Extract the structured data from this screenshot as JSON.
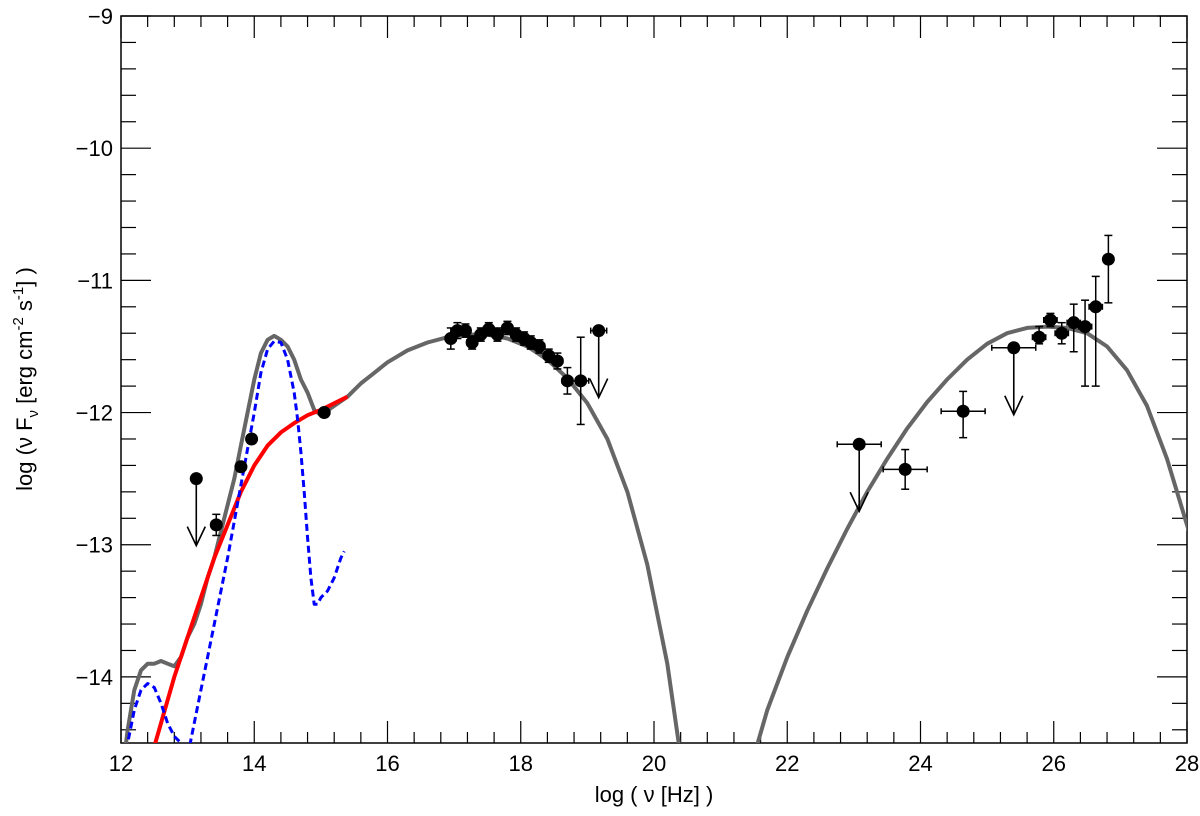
{
  "chart_data": {
    "type": "scatter",
    "title": "",
    "xlabel": "log ( ν [Hz] )",
    "ylabel": "log (ν F",
    "ylabel_sub": "ν",
    "ylabel_rest": " [erg cm",
    "ylabel_exp1": "-2",
    "ylabel_mid": " s",
    "ylabel_exp2": "-1",
    "ylabel_end": "] )",
    "xlim": [
      12,
      28
    ],
    "ylim": [
      -14.5,
      -9
    ],
    "xticks": [
      {
        "value": 12,
        "label": "12"
      },
      {
        "value": 14,
        "label": "14"
      },
      {
        "value": 16,
        "label": "16"
      },
      {
        "value": 18,
        "label": "18"
      },
      {
        "value": 20,
        "label": "20"
      },
      {
        "value": 22,
        "label": "22"
      },
      {
        "value": 24,
        "label": "24"
      },
      {
        "value": 26,
        "label": "26"
      },
      {
        "value": 28,
        "label": "28"
      }
    ],
    "yticks": [
      {
        "value": -14,
        "label": "−14"
      },
      {
        "value": -13,
        "label": "−13"
      },
      {
        "value": -12,
        "label": "−12"
      },
      {
        "value": -11,
        "label": "−11"
      },
      {
        "value": -10,
        "label": "−10"
      },
      {
        "value": -9,
        "label": "−9"
      }
    ],
    "grid": false,
    "colors": {
      "total": "#666666",
      "red": "#ff0000",
      "blue": "#0000ff",
      "points": "#000000"
    },
    "points": [
      {
        "x": 13.43,
        "y": -12.85,
        "yerr": [
          0.08,
          0.08
        ]
      },
      {
        "x": 13.8,
        "y": -12.41,
        "yerr": [
          0.03,
          0.03
        ]
      },
      {
        "x": 13.96,
        "y": -12.2,
        "yerr": [
          0.03,
          0.03
        ]
      },
      {
        "x": 15.05,
        "y": -12.0,
        "yerr": [
          0.03,
          0.03
        ]
      },
      {
        "x": 16.95,
        "y": -11.44,
        "xerr": [
          0.08,
          0.08
        ],
        "yerr": [
          0.08,
          0.08
        ]
      },
      {
        "x": 17.05,
        "y": -11.38,
        "xerr": [
          0.08,
          0.08
        ],
        "yerr": [
          0.06,
          0.06
        ]
      },
      {
        "x": 17.17,
        "y": -11.38,
        "xerr": [
          0.08,
          0.08
        ],
        "yerr": [
          0.05,
          0.05
        ]
      },
      {
        "x": 17.27,
        "y": -11.47,
        "xerr": [
          0.08,
          0.08
        ],
        "yerr": [
          0.05,
          0.05
        ]
      },
      {
        "x": 17.4,
        "y": -11.41,
        "xerr": [
          0.08,
          0.08
        ],
        "yerr": [
          0.05,
          0.05
        ]
      },
      {
        "x": 17.52,
        "y": -11.37,
        "xerr": [
          0.08,
          0.08
        ],
        "yerr": [
          0.05,
          0.05
        ]
      },
      {
        "x": 17.65,
        "y": -11.41,
        "xerr": [
          0.08,
          0.08
        ],
        "yerr": [
          0.05,
          0.05
        ]
      },
      {
        "x": 17.8,
        "y": -11.36,
        "xerr": [
          0.08,
          0.08
        ],
        "yerr": [
          0.05,
          0.05
        ]
      },
      {
        "x": 17.93,
        "y": -11.41,
        "xerr": [
          0.08,
          0.08
        ],
        "yerr": [
          0.05,
          0.05
        ]
      },
      {
        "x": 18.05,
        "y": -11.44,
        "xerr": [
          0.08,
          0.08
        ],
        "yerr": [
          0.05,
          0.05
        ]
      },
      {
        "x": 18.15,
        "y": -11.47,
        "xerr": [
          0.08,
          0.08
        ],
        "yerr": [
          0.05,
          0.05
        ]
      },
      {
        "x": 18.28,
        "y": -11.5,
        "xerr": [
          0.08,
          0.08
        ],
        "yerr": [
          0.05,
          0.05
        ]
      },
      {
        "x": 18.42,
        "y": -11.57,
        "xerr": [
          0.08,
          0.08
        ],
        "yerr": [
          0.05,
          0.05
        ]
      },
      {
        "x": 18.55,
        "y": -11.61,
        "xerr": [
          0.08,
          0.08
        ],
        "yerr": [
          0.06,
          0.06
        ]
      },
      {
        "x": 18.7,
        "y": -11.76,
        "xerr": [
          0.08,
          0.08
        ],
        "yerr": [
          0.1,
          0.1
        ]
      },
      {
        "x": 18.9,
        "y": -11.76,
        "xerr": [
          0.12,
          0.12
        ],
        "yerr": [
          0.33,
          0.33
        ]
      },
      {
        "x": 23.77,
        "y": -12.43,
        "xerr": [
          0.33,
          0.33
        ],
        "yerr": [
          0.15,
          0.15
        ]
      },
      {
        "x": 24.64,
        "y": -11.99,
        "xerr": [
          0.33,
          0.33
        ],
        "yerr": [
          0.2,
          0.15
        ]
      },
      {
        "x": 25.78,
        "y": -11.43,
        "xerr": [
          0.1,
          0.1
        ],
        "yerr": [
          0.05,
          0.08
        ]
      },
      {
        "x": 25.95,
        "y": -11.3,
        "xerr": [
          0.1,
          0.1
        ],
        "yerr": [
          0.05,
          0.05
        ]
      },
      {
        "x": 26.12,
        "y": -11.4,
        "xerr": [
          0.1,
          0.1
        ],
        "yerr": [
          0.08,
          0.08
        ]
      },
      {
        "x": 26.3,
        "y": -11.32,
        "xerr": [
          0.1,
          0.1
        ],
        "yerr": [
          0.22,
          0.14
        ]
      },
      {
        "x": 26.47,
        "y": -11.35,
        "xerr": [
          0.1,
          0.1
        ],
        "yerr": [
          0.45,
          0.2
        ]
      },
      {
        "x": 26.63,
        "y": -11.2,
        "xerr": [
          0.1,
          0.1
        ],
        "yerr": [
          0.6,
          0.23
        ]
      },
      {
        "x": 26.82,
        "y": -10.84,
        "xerr": [
          0.05,
          0.05
        ],
        "yerr": [
          0.33,
          0.18
        ]
      }
    ],
    "upper_limits": [
      {
        "x": 13.13,
        "y": -12.5
      },
      {
        "x": 19.17,
        "y": -11.38,
        "xerr": [
          0.12,
          0.12
        ]
      },
      {
        "x": 23.08,
        "y": -12.24,
        "xerr": [
          0.33,
          0.33
        ]
      },
      {
        "x": 25.4,
        "y": -11.51,
        "xerr": [
          0.33,
          0.33
        ]
      }
    ],
    "series": [
      {
        "color": "#666666",
        "style": "solid",
        "x": [
          12.0,
          12.1,
          12.2,
          12.3,
          12.4,
          12.5,
          12.6,
          12.7,
          12.8,
          12.9,
          13.0,
          13.1,
          13.2,
          13.3,
          13.4,
          13.5,
          13.6,
          13.7,
          13.8,
          13.9,
          14.0,
          14.1,
          14.2,
          14.3,
          14.4,
          14.5,
          14.6,
          14.7,
          14.8,
          14.9,
          15.0,
          15.2,
          15.4,
          15.6,
          15.8,
          16.0,
          16.3,
          16.6,
          16.9,
          17.2,
          17.5,
          17.8,
          18.1,
          18.4,
          18.7,
          19.0,
          19.3,
          19.6,
          19.9,
          20.2,
          20.4
        ],
        "y": [
          -14.8,
          -14.4,
          -14.1,
          -13.95,
          -13.9,
          -13.9,
          -13.88,
          -13.9,
          -13.92,
          -13.85,
          -13.7,
          -13.6,
          -13.45,
          -13.25,
          -13.1,
          -12.9,
          -12.7,
          -12.5,
          -12.25,
          -12.0,
          -11.75,
          -11.55,
          -11.45,
          -11.42,
          -11.45,
          -11.5,
          -11.6,
          -11.75,
          -11.85,
          -11.98,
          -12.02,
          -11.95,
          -11.88,
          -11.78,
          -11.7,
          -11.62,
          -11.53,
          -11.47,
          -11.43,
          -11.41,
          -11.41,
          -11.44,
          -11.5,
          -11.6,
          -11.74,
          -11.93,
          -12.2,
          -12.6,
          -13.15,
          -13.9,
          -14.6
        ]
      },
      {
        "color": "#666666",
        "style": "solid",
        "x": [
          21.5,
          21.7,
          22.0,
          22.3,
          22.6,
          22.9,
          23.2,
          23.5,
          23.8,
          24.1,
          24.4,
          24.7,
          25.0,
          25.3,
          25.6,
          25.9,
          26.2,
          26.5,
          26.8,
          27.1,
          27.4,
          27.7,
          28.0,
          28.05
        ],
        "y": [
          -14.6,
          -14.25,
          -13.85,
          -13.5,
          -13.18,
          -12.88,
          -12.6,
          -12.35,
          -12.12,
          -11.92,
          -11.75,
          -11.6,
          -11.48,
          -11.4,
          -11.36,
          -11.35,
          -11.36,
          -11.4,
          -11.5,
          -11.68,
          -11.95,
          -12.35,
          -12.85,
          -12.93
        ]
      },
      {
        "color": "#ff0000",
        "style": "solid",
        "x": [
          12.4,
          12.6,
          12.8,
          13.0,
          13.2,
          13.4,
          13.6,
          13.8,
          14.0,
          14.2,
          14.4,
          14.6,
          14.8,
          15.0,
          15.2,
          15.4
        ],
        "y": [
          -14.7,
          -14.35,
          -14.0,
          -13.7,
          -13.4,
          -13.1,
          -12.85,
          -12.6,
          -12.4,
          -12.25,
          -12.15,
          -12.08,
          -12.02,
          -11.98,
          -11.93,
          -11.88
        ]
      },
      {
        "color": "#0000ff",
        "style": "dashed",
        "x": [
          12.0,
          12.1,
          12.2,
          12.3,
          12.4,
          12.5,
          12.6,
          12.7,
          12.8,
          12.9,
          12.95
        ],
        "y": [
          -14.8,
          -14.5,
          -14.25,
          -14.1,
          -14.05,
          -14.08,
          -14.2,
          -14.35,
          -14.45,
          -14.5,
          -14.55
        ]
      },
      {
        "color": "#0000ff",
        "style": "dashed",
        "x": [
          13.0,
          13.2,
          13.4,
          13.6,
          13.8,
          14.0,
          14.1,
          14.2,
          14.3,
          14.4,
          14.5,
          14.6,
          14.65,
          14.7,
          14.75,
          14.8,
          14.85,
          14.9,
          14.95,
          15.0,
          15.1,
          15.2,
          15.3,
          15.35
        ],
        "y": [
          -14.6,
          -14.1,
          -13.6,
          -13.1,
          -12.55,
          -12.0,
          -11.7,
          -11.52,
          -11.46,
          -11.47,
          -11.6,
          -11.85,
          -12.05,
          -12.3,
          -12.6,
          -12.95,
          -13.25,
          -13.45,
          -13.45,
          -13.4,
          -13.35,
          -13.25,
          -13.1,
          -13.05
        ]
      }
    ]
  }
}
